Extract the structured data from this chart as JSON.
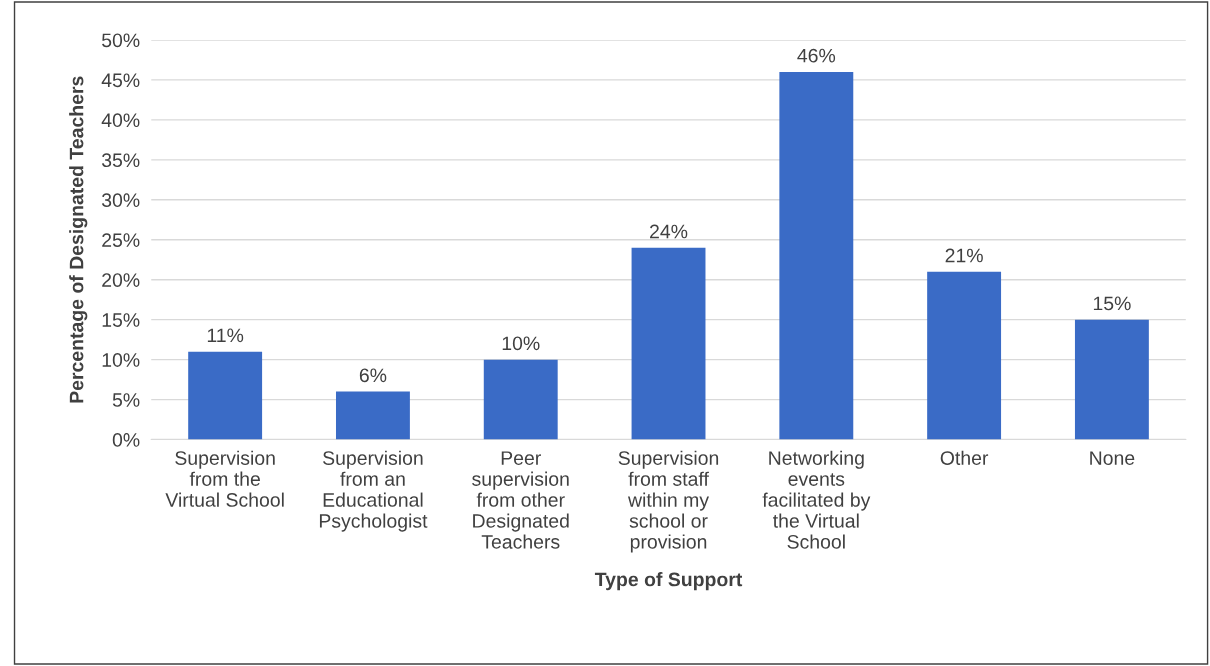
{
  "chart_data": {
    "type": "bar",
    "xlabel": "Type of Support",
    "ylabel": "Percentage of Designated Teachers",
    "categories": [
      "Supervision from the Virtual School",
      "Supervision from an Educational Psychologist",
      "Peer supervision from other Designated Teachers",
      "Supervision from staff within my school or provision",
      "Networking events facilitated by the Virtual School",
      "Other",
      "None"
    ],
    "values": [
      11,
      6,
      10,
      24,
      46,
      21,
      15
    ],
    "value_labels": [
      "11%",
      "6%",
      "10%",
      "24%",
      "46%",
      "21%",
      "15%"
    ],
    "color": "#3a6bc6",
    "ylim": [
      0,
      50
    ],
    "yticks": [
      {
        "value": 0,
        "label": "0%"
      },
      {
        "value": 5,
        "label": "5%"
      },
      {
        "value": 10,
        "label": "10%"
      },
      {
        "value": 15,
        "label": "15%"
      },
      {
        "value": 20,
        "label": "20%"
      },
      {
        "value": 25,
        "label": "25%"
      },
      {
        "value": 30,
        "label": "30%"
      },
      {
        "value": 35,
        "label": "35%"
      },
      {
        "value": 40,
        "label": "40%"
      },
      {
        "value": 45,
        "label": "45%"
      },
      {
        "value": 50,
        "label": "50%"
      }
    ],
    "grid": "y"
  }
}
